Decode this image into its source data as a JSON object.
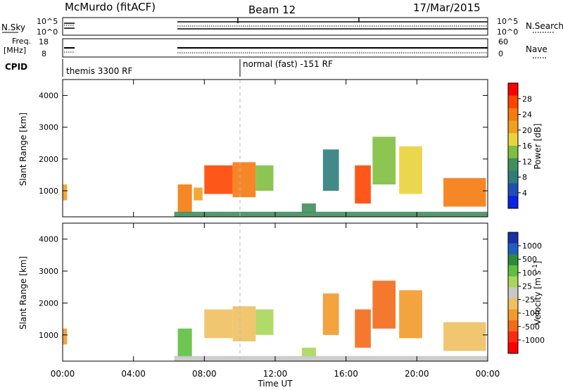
{
  "header": {
    "station": "McMurdo (fitACF)",
    "beam": "Beam 12",
    "date": "17/Mar/2015"
  },
  "status_panels": {
    "nsky_label": "N.Sky",
    "nsearch_label": "N.Search",
    "noise_ticks": [
      "10^5",
      "10^0"
    ],
    "freq_label": [
      "Freq.",
      "[MHz]"
    ],
    "freq_ticks": [
      "18",
      "8"
    ],
    "nave_label": "Nave",
    "nave_ticks": [
      "60",
      "0"
    ],
    "cpid_label": "CPID",
    "cpid_segments": [
      "themis 3300 RF",
      "normal (fast) -151 RF"
    ]
  },
  "colors": {
    "power_scale": [
      "#0a22e6",
      "#1e4fb4",
      "#2e7d7a",
      "#3f8f5c",
      "#7fbf3f",
      "#e8d33a",
      "#f0a020",
      "#f57a10",
      "#ff4500",
      "#ff0000"
    ],
    "velocity_scale": [
      "#1a2fa8",
      "#1f5fbf",
      "#2b8a3c",
      "#5fbf3f",
      "#a9d65a",
      "#c8c8c8",
      "#f0c060",
      "#f29a2a",
      "#f36a18",
      "#ff2a10",
      "#ff0000"
    ]
  },
  "chart_data": [
    {
      "type": "heatmap",
      "title": "Power",
      "xlabel": "",
      "ylabel": "Slant Range [km]",
      "xlim": [
        "00:00",
        "00:00"
      ],
      "ylim": [
        180,
        4500
      ],
      "yticks": [
        "1000",
        "2000",
        "3000",
        "4000"
      ],
      "colorbar": {
        "label": "Power [dB]",
        "ticks": [
          "4",
          "8",
          "12",
          "16",
          "20",
          "24",
          "28"
        ],
        "range": [
          0,
          30
        ]
      },
      "patches": [
        {
          "t0": 6.5,
          "t1": 7.3,
          "r0": 300,
          "r1": 1200,
          "value": 22
        },
        {
          "t0": 7.4,
          "t1": 7.9,
          "r0": 700,
          "r1": 1100,
          "value": 20
        },
        {
          "t0": 8.0,
          "t1": 9.6,
          "r0": 900,
          "r1": 1800,
          "value": 24
        },
        {
          "t0": 9.6,
          "t1": 10.9,
          "r0": 800,
          "r1": 1900,
          "value": 22
        },
        {
          "t0": 10.9,
          "t1": 11.9,
          "r0": 1000,
          "r1": 1800,
          "value": 14
        },
        {
          "t0": 13.5,
          "t1": 14.3,
          "r0": 300,
          "r1": 600,
          "value": 10
        },
        {
          "t0": 14.7,
          "t1": 15.6,
          "r0": 1000,
          "r1": 2300,
          "value": 8
        },
        {
          "t0": 16.5,
          "t1": 17.4,
          "r0": 600,
          "r1": 1800,
          "value": 24
        },
        {
          "t0": 17.5,
          "t1": 18.8,
          "r0": 1200,
          "r1": 2700,
          "value": 14
        },
        {
          "t0": 19.0,
          "t1": 20.3,
          "r0": 900,
          "r1": 2400,
          "value": 16
        },
        {
          "t0": 21.5,
          "t1": 23.9,
          "r0": 500,
          "r1": 1400,
          "value": 22
        },
        {
          "t0": 6.3,
          "t1": 24.0,
          "r0": 180,
          "r1": 340,
          "value": 10
        },
        {
          "t0": 0.0,
          "t1": 0.25,
          "r0": 700,
          "r1": 1200,
          "value": 18
        }
      ]
    },
    {
      "type": "heatmap",
      "title": "Velocity",
      "xlabel": "Time UT",
      "ylabel": "Slant Range [km]",
      "xticks": [
        "00:00",
        "04:00",
        "08:00",
        "12:00",
        "16:00",
        "20:00",
        "00:00"
      ],
      "xlim": [
        "00:00",
        "00:00"
      ],
      "ylim": [
        180,
        4500
      ],
      "yticks": [
        "1000",
        "2000",
        "3000",
        "4000"
      ],
      "colorbar": {
        "label": "Velocity [m s^-1]",
        "ticks": [
          "1000",
          "500",
          "100",
          "25",
          "-25",
          "-100",
          "-500",
          "-1000"
        ],
        "range": [
          -1000,
          1000
        ]
      },
      "patches": [
        {
          "t0": 6.5,
          "t1": 7.3,
          "r0": 300,
          "r1": 1200,
          "value": 300
        },
        {
          "t0": 8.0,
          "t1": 9.6,
          "r0": 900,
          "r1": 1800,
          "value": -150
        },
        {
          "t0": 9.6,
          "t1": 10.9,
          "r0": 800,
          "r1": 1900,
          "value": -200
        },
        {
          "t0": 10.9,
          "t1": 11.9,
          "r0": 1000,
          "r1": 1800,
          "value": 200
        },
        {
          "t0": 13.5,
          "t1": 14.3,
          "r0": 300,
          "r1": 600,
          "value": 150
        },
        {
          "t0": 14.7,
          "t1": 15.6,
          "r0": 1000,
          "r1": 2300,
          "value": -300
        },
        {
          "t0": 16.5,
          "t1": 17.4,
          "r0": 600,
          "r1": 1800,
          "value": -600
        },
        {
          "t0": 17.5,
          "t1": 18.8,
          "r0": 1200,
          "r1": 2700,
          "value": -550
        },
        {
          "t0": 19.0,
          "t1": 20.3,
          "r0": 900,
          "r1": 2400,
          "value": -450
        },
        {
          "t0": 21.5,
          "t1": 23.9,
          "r0": 500,
          "r1": 1400,
          "value": -120
        },
        {
          "t0": 6.3,
          "t1": 24.0,
          "r0": 180,
          "r1": 340,
          "value": -60
        },
        {
          "t0": 0.0,
          "t1": 0.25,
          "r0": 700,
          "r1": 1200,
          "value": -400
        }
      ]
    }
  ]
}
